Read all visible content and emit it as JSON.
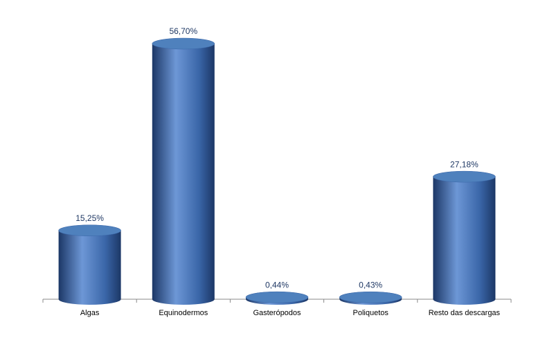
{
  "chart_data": {
    "type": "bar",
    "categories": [
      "Algas",
      "Equinodermos",
      "Gasterópodos",
      "Poliquetos",
      "Resto das descargas"
    ],
    "values": [
      15.25,
      56.7,
      0.44,
      0.43,
      27.18
    ],
    "value_labels": [
      "15,25%",
      "56,70%",
      "0,44%",
      "0,43%",
      "27,18%"
    ],
    "color": "#4f81bd"
  }
}
